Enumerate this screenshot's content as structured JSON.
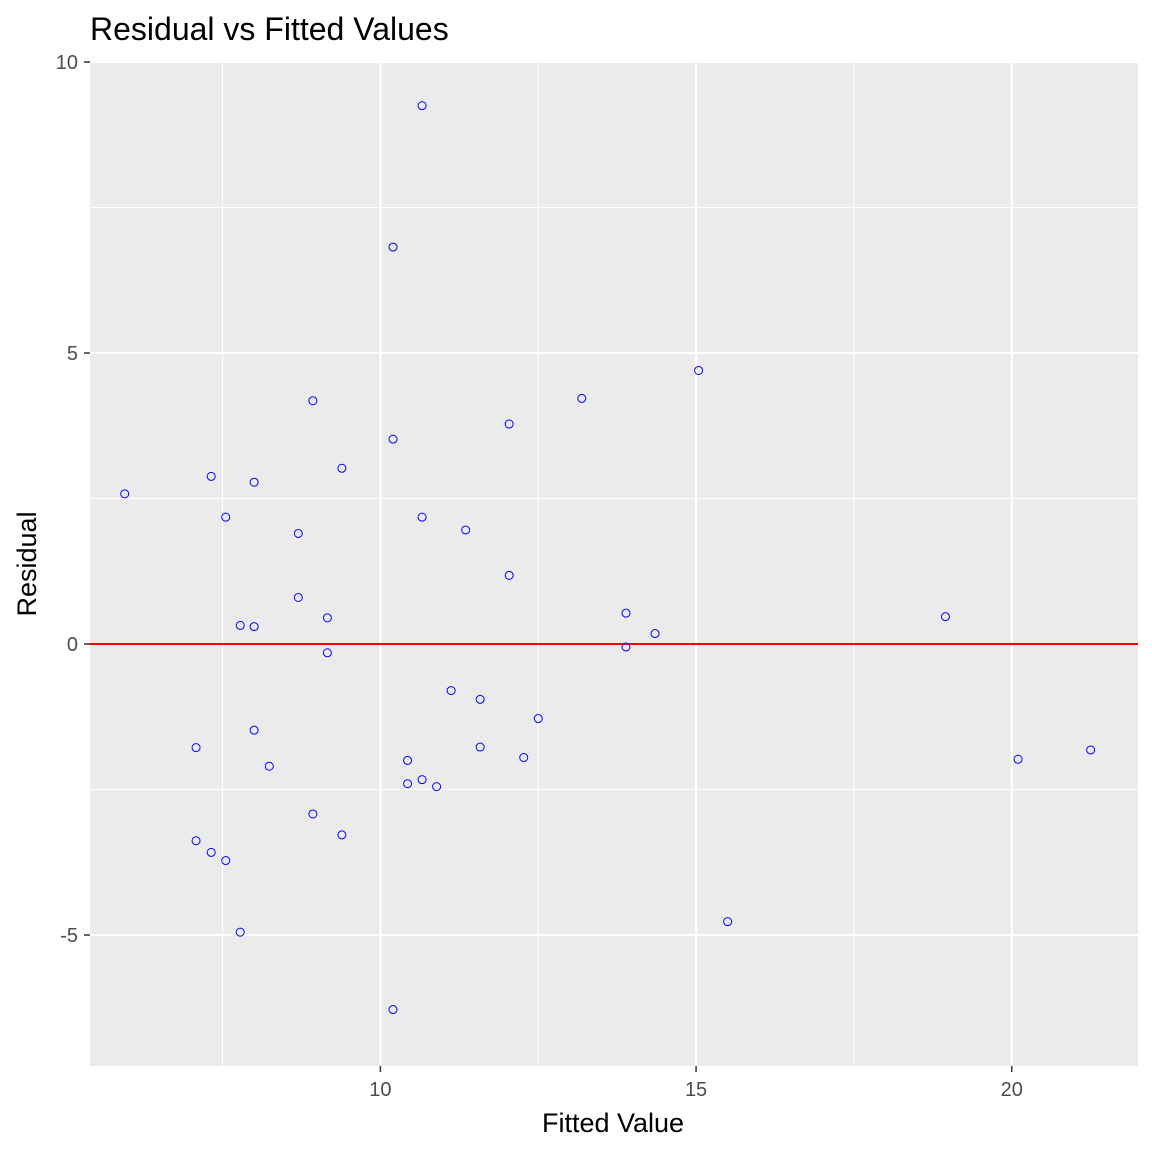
{
  "chart_data": {
    "type": "scatter",
    "title": "Residual vs Fitted Values",
    "xlabel": "Fitted Value",
    "ylabel": "Residual",
    "xlim": [
      5.4,
      22.0
    ],
    "ylim": [
      -7.25,
      10.0
    ],
    "x_ticks": [
      10,
      15,
      20
    ],
    "x_minor": [
      7.5,
      12.5,
      17.5
    ],
    "y_ticks": [
      -5,
      0,
      5,
      10
    ],
    "y_minor": [
      -2.5,
      2.5,
      7.5
    ],
    "grid": true,
    "reference_line": {
      "y": 0,
      "color": "#ff0000"
    },
    "colors": {
      "panel_bg": "#ebebeb",
      "grid": "#ffffff",
      "point": "#0000ff",
      "tick": "#333333"
    },
    "points": [
      {
        "x": 5.95,
        "y": 2.58
      },
      {
        "x": 7.08,
        "y": -1.78
      },
      {
        "x": 7.08,
        "y": -3.38
      },
      {
        "x": 7.32,
        "y": 2.88
      },
      {
        "x": 7.32,
        "y": -3.58
      },
      {
        "x": 7.55,
        "y": 2.18
      },
      {
        "x": 7.55,
        "y": -3.72
      },
      {
        "x": 7.78,
        "y": 0.32
      },
      {
        "x": 7.78,
        "y": -4.95
      },
      {
        "x": 8.0,
        "y": 2.78
      },
      {
        "x": 8.0,
        "y": 0.3
      },
      {
        "x": 8.0,
        "y": -1.48
      },
      {
        "x": 8.24,
        "y": -2.1
      },
      {
        "x": 8.7,
        "y": 1.9
      },
      {
        "x": 8.7,
        "y": 0.8
      },
      {
        "x": 8.93,
        "y": 4.18
      },
      {
        "x": 8.93,
        "y": -2.92
      },
      {
        "x": 9.16,
        "y": 0.45
      },
      {
        "x": 9.16,
        "y": -0.15
      },
      {
        "x": 9.39,
        "y": 3.02
      },
      {
        "x": 9.39,
        "y": -3.28
      },
      {
        "x": 10.2,
        "y": 6.82
      },
      {
        "x": 10.2,
        "y": 3.52
      },
      {
        "x": 10.2,
        "y": -6.28
      },
      {
        "x": 10.43,
        "y": -2.0
      },
      {
        "x": 10.43,
        "y": -2.4
      },
      {
        "x": 10.66,
        "y": 9.25
      },
      {
        "x": 10.66,
        "y": 2.18
      },
      {
        "x": 10.66,
        "y": -2.33
      },
      {
        "x": 10.89,
        "y": -2.45
      },
      {
        "x": 11.12,
        "y": -0.8
      },
      {
        "x": 11.35,
        "y": 1.96
      },
      {
        "x": 11.58,
        "y": -0.95
      },
      {
        "x": 11.58,
        "y": -1.77
      },
      {
        "x": 12.04,
        "y": 3.78
      },
      {
        "x": 12.04,
        "y": 1.18
      },
      {
        "x": 12.27,
        "y": -1.95
      },
      {
        "x": 12.5,
        "y": -1.28
      },
      {
        "x": 13.19,
        "y": 4.22
      },
      {
        "x": 13.89,
        "y": 0.53
      },
      {
        "x": 13.89,
        "y": -0.05
      },
      {
        "x": 14.35,
        "y": 0.18
      },
      {
        "x": 15.04,
        "y": 4.7
      },
      {
        "x": 15.5,
        "y": -4.77
      },
      {
        "x": 18.95,
        "y": 0.47
      },
      {
        "x": 20.1,
        "y": -1.98
      },
      {
        "x": 21.25,
        "y": -1.82
      }
    ]
  }
}
